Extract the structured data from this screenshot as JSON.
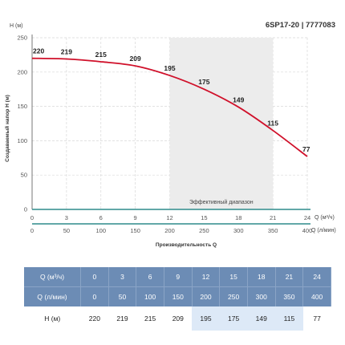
{
  "chart_data": {
    "type": "line",
    "title": "6SP17-20 | 7777083",
    "ylabel": "Создаваемый напор Н (м)",
    "ylabel_unit": "Н (м)",
    "xlabel": "Производительность Q",
    "x_axis_1": {
      "label": "Q (м³/ч)",
      "ticks": [
        "0",
        "3",
        "6",
        "9",
        "12",
        "15",
        "18",
        "21",
        "24"
      ]
    },
    "x_axis_2": {
      "label": "Q (л/мин)",
      "ticks": [
        "0",
        "50",
        "100",
        "150",
        "200",
        "250",
        "300",
        "350",
        "400"
      ]
    },
    "y_ticks": [
      "0",
      "50",
      "100",
      "150",
      "200",
      "250"
    ],
    "ylim": [
      0,
      250
    ],
    "xlim": [
      0,
      24
    ],
    "x": [
      0,
      3,
      6,
      9,
      12,
      15,
      18,
      21,
      24
    ],
    "series": [
      {
        "values": [
          220,
          219,
          215,
          209,
          195,
          175,
          149,
          115,
          77
        ],
        "color": "#d0102a"
      }
    ],
    "data_labels": [
      "220",
      "219",
      "215",
      "209",
      "195",
      "175",
      "149",
      "115",
      "77"
    ],
    "efficient_range": {
      "x_start": 12,
      "x_end": 21,
      "label": "Эффективный диапазон"
    },
    "grid": true
  },
  "table": {
    "rows": [
      {
        "header": "Q (м³/ч)",
        "cells": [
          "0",
          "3",
          "6",
          "9",
          "12",
          "15",
          "18",
          "21",
          "24"
        ],
        "kind": "hd"
      },
      {
        "header": "Q (л/мин)",
        "cells": [
          "0",
          "50",
          "100",
          "150",
          "200",
          "250",
          "300",
          "350",
          "400"
        ],
        "kind": "hd"
      },
      {
        "header": "Н (м)",
        "cells": [
          "220",
          "219",
          "215",
          "209",
          "195",
          "175",
          "149",
          "115",
          "77"
        ],
        "kind": "dt"
      }
    ],
    "highlight_cols": [
      4,
      5,
      6,
      7
    ]
  }
}
